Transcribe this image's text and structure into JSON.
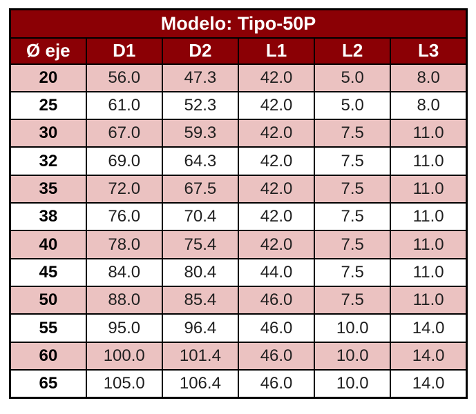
{
  "table": {
    "title": "Modelo: Tipo-50P",
    "columns": [
      "Ø eje",
      "D1",
      "D2",
      "L1",
      "L2",
      "L3"
    ],
    "rows": [
      [
        "20",
        "56.0",
        "47.3",
        "42.0",
        "5.0",
        "8.0"
      ],
      [
        "25",
        "61.0",
        "52.3",
        "42.0",
        "5.0",
        "8.0"
      ],
      [
        "30",
        "67.0",
        "59.3",
        "42.0",
        "7.5",
        "11.0"
      ],
      [
        "32",
        "69.0",
        "64.3",
        "42.0",
        "7.5",
        "11.0"
      ],
      [
        "35",
        "72.0",
        "67.5",
        "42.0",
        "7.5",
        "11.0"
      ],
      [
        "38",
        "76.0",
        "70.4",
        "42.0",
        "7.5",
        "11.0"
      ],
      [
        "40",
        "78.0",
        "75.4",
        "42.0",
        "7.5",
        "11.0"
      ],
      [
        "45",
        "84.0",
        "80.4",
        "44.0",
        "7.5",
        "11.0"
      ],
      [
        "50",
        "88.0",
        "85.4",
        "46.0",
        "7.5",
        "11.0"
      ],
      [
        "55",
        "95.0",
        "96.4",
        "46.0",
        "10.0",
        "14.0"
      ],
      [
        "60",
        "100.0",
        "101.4",
        "46.0",
        "10.0",
        "14.0"
      ],
      [
        "65",
        "105.0",
        "106.4",
        "46.0",
        "10.0",
        "14.0"
      ]
    ],
    "colors": {
      "header_bg": "#8b0005",
      "stripe_pink": "#ebc2c1",
      "stripe_white": "#ffffff",
      "grid_line": "#000000",
      "header_text": "#ffffff",
      "body_text": "#1f1f1f"
    }
  }
}
